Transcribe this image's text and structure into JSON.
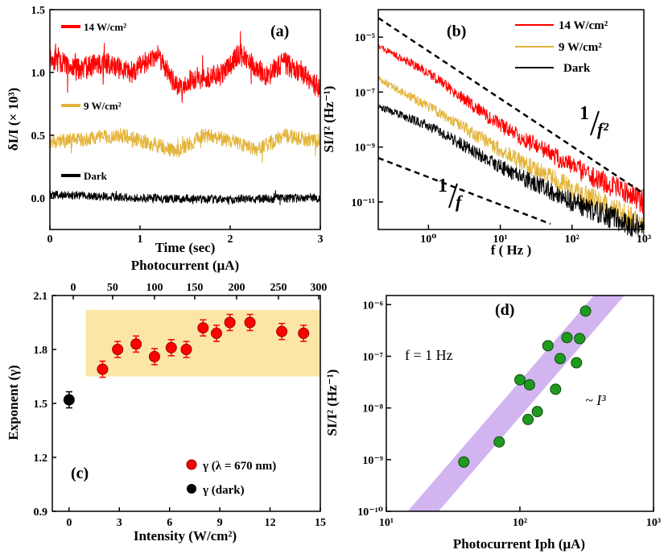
{
  "chart_data": [
    {
      "id": "a",
      "type": "line",
      "panel_label": "(a)",
      "xlabel": "Time (sec)",
      "ylabel": "δI/I (× 10³)",
      "xlim": [
        0,
        3
      ],
      "ylim": [
        -0.25,
        1.5
      ],
      "xticks": [
        "0",
        "1",
        "2",
        "3"
      ],
      "yticks": [
        "0.0",
        "0.5",
        "1.0",
        "1.5"
      ],
      "series": [
        {
          "name": "14 W/cm²",
          "color": "#ff0000",
          "mean": 1.05,
          "noise": 0.09,
          "trend": [
            [
              0,
              1.12
            ],
            [
              0.3,
              1.02
            ],
            [
              0.6,
              1.08
            ],
            [
              0.9,
              1.0
            ],
            [
              1.2,
              1.15
            ],
            [
              1.4,
              0.88
            ],
            [
              1.6,
              0.95
            ],
            [
              1.9,
              0.98
            ],
            [
              2.1,
              1.15
            ],
            [
              2.4,
              0.98
            ],
            [
              2.6,
              1.08
            ],
            [
              3.0,
              0.88
            ]
          ]
        },
        {
          "name": "9 W/cm²",
          "color": "#e3b43a",
          "mean": 0.47,
          "noise": 0.06,
          "trend": [
            [
              0,
              0.45
            ],
            [
              0.4,
              0.47
            ],
            [
              0.8,
              0.5
            ],
            [
              1.2,
              0.42
            ],
            [
              1.4,
              0.37
            ],
            [
              1.7,
              0.5
            ],
            [
              2.0,
              0.46
            ],
            [
              2.3,
              0.38
            ],
            [
              2.6,
              0.5
            ],
            [
              3.0,
              0.45
            ]
          ]
        },
        {
          "name": "Dark",
          "color": "#000000",
          "mean": 0.0,
          "noise": 0.035,
          "trend": [
            [
              0,
              0.03
            ],
            [
              1,
              0.0
            ],
            [
              2,
              -0.01
            ],
            [
              3,
              0.0
            ]
          ]
        }
      ]
    },
    {
      "id": "b",
      "type": "line",
      "panel_label": "(b)",
      "xlabel": "f ( Hz )",
      "ylabel": "SI/I² (Hz⁻¹)",
      "xscale": "log",
      "yscale": "log",
      "xlim": [
        0.2,
        1000
      ],
      "ylim": [
        1e-12,
        0.0001
      ],
      "xticks": [
        "10⁰",
        "10¹",
        "10²",
        "10³"
      ],
      "yticks": [
        "10⁻¹¹",
        "10⁻⁹",
        "10⁻⁷",
        "10⁻⁵"
      ],
      "series": [
        {
          "name": "14 W/cm²",
          "color": "#ff0000",
          "points": [
            [
              0.2,
              5e-06
            ],
            [
              1,
              5e-07
            ],
            [
              10,
              6e-09
            ],
            [
              100,
              2e-10
            ],
            [
              1000,
              1e-11
            ]
          ]
        },
        {
          "name": "9 W/cm²",
          "color": "#e3b43a",
          "points": [
            [
              0.2,
              3e-07
            ],
            [
              1,
              3e-08
            ],
            [
              10,
              8e-10
            ],
            [
              100,
              3e-11
            ],
            [
              1000,
              1.5e-12
            ]
          ]
        },
        {
          "name": "Dark",
          "color": "#000000",
          "points": [
            [
              0.2,
              3e-08
            ],
            [
              1,
              6e-09
            ],
            [
              10,
              2e-10
            ],
            [
              100,
              1e-11
            ],
            [
              1000,
              1e-12
            ]
          ]
        }
      ],
      "reference_lines": [
        {
          "label": "1/f²",
          "points": [
            [
              0.2,
              5e-05
            ],
            [
              1000,
              2e-11
            ]
          ]
        },
        {
          "label": "1/f",
          "points": [
            [
              0.2,
              4e-10
            ],
            [
              50,
              1.6e-12
            ]
          ]
        }
      ],
      "annotations": {
        "slope2_num": "1",
        "slope2_den": "f²",
        "slope1_num": "1",
        "slope1_den": "f"
      }
    },
    {
      "id": "c",
      "type": "scatter",
      "panel_label": "(c)",
      "xlabel": "Intensity (W/cm²)",
      "ylabel": "Exponent (γ)",
      "top_xlabel": "Photocurrent (μA)",
      "xlim": [
        -1,
        15
      ],
      "ylim": [
        0.9,
        2.1
      ],
      "xticks": [
        "0",
        "3",
        "6",
        "9",
        "12",
        "15"
      ],
      "yticks": [
        "0.9",
        "1.2",
        "1.5",
        "1.8",
        "2.1"
      ],
      "top_ticks": [
        "0",
        "50",
        "100",
        "150",
        "200",
        "250",
        "300"
      ],
      "top_tick_positions": [
        0.25,
        2.6,
        5.1,
        7.5,
        10.0,
        12.5,
        14.9
      ],
      "band": {
        "x": [
          1.0,
          15.0
        ],
        "y": [
          1.65,
          2.02
        ],
        "color": "#fbe6a8"
      },
      "series": [
        {
          "name": "γ (λ = 670 nm)",
          "color": "#ff0000",
          "x": [
            2.0,
            2.9,
            4.0,
            5.1,
            6.1,
            7.0,
            8.0,
            8.8,
            9.6,
            10.8,
            12.7,
            14.0
          ],
          "y": [
            1.69,
            1.8,
            1.83,
            1.76,
            1.81,
            1.8,
            1.92,
            1.89,
            1.95,
            1.95,
            1.9,
            1.89
          ]
        },
        {
          "name": "γ (dark)",
          "color": "#000000",
          "x": [
            0
          ],
          "y": [
            1.52
          ]
        }
      ]
    },
    {
      "id": "d",
      "type": "scatter",
      "panel_label": "(d)",
      "xlabel": "Photocurrent Iph (μA)",
      "ylabel": "SI/I² (Hz⁻¹)",
      "xscale": "log",
      "yscale": "log",
      "xlim": [
        10,
        1000
      ],
      "ylim": [
        1e-10,
        1.5e-06
      ],
      "xticks": [
        "10¹",
        "10²",
        "10³"
      ],
      "yticks": [
        "10⁻¹⁰",
        "10⁻⁹",
        "10⁻⁸",
        "10⁻⁷",
        "10⁻⁶"
      ],
      "annotation_f": "f = 1 Hz",
      "annotation_slope": "~ I³",
      "band_color": "#d2b4f0",
      "series": [
        {
          "name": "data",
          "color": "#1f9a1f",
          "x": [
            38,
            70,
            100,
            118,
            115,
            135,
            162,
            185,
            200,
            225,
            265,
            280,
            310
          ],
          "y": [
            9e-10,
            2.2e-09,
            3.5e-08,
            2.8e-08,
            6e-09,
            8.5e-09,
            1.6e-07,
            2.3e-08,
            9e-08,
            2.3e-07,
            7.5e-08,
            2.2e-07,
            7.5e-07
          ]
        }
      ]
    }
  ]
}
